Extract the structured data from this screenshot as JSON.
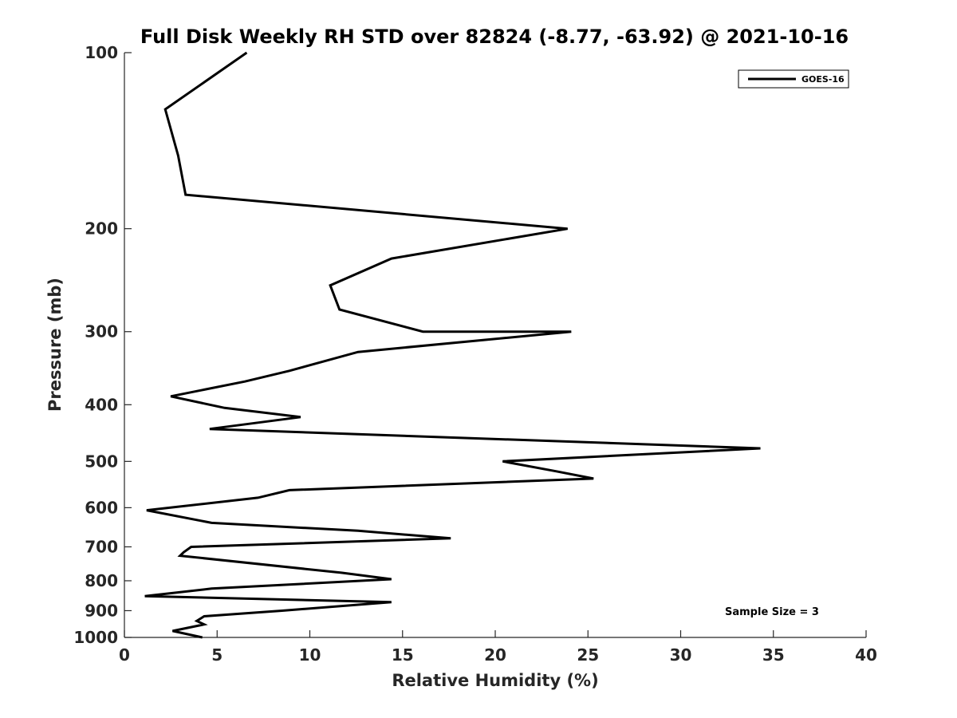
{
  "chart_data": {
    "type": "line",
    "title": "Full Disk Weekly RH STD over 82824 (-8.77, -63.92) @ 2021-10-16",
    "xlabel": "Relative Humidity (%)",
    "ylabel": "Pressure (mb)",
    "xlim": [
      0,
      40
    ],
    "ylim": [
      1000,
      100
    ],
    "y_scale": "log",
    "x_ticks": [
      0,
      5,
      10,
      15,
      20,
      25,
      30,
      35,
      40
    ],
    "x_tick_labels": [
      "0",
      "5",
      "10",
      "15",
      "20",
      "25",
      "30",
      "35",
      "40"
    ],
    "y_ticks": [
      100,
      200,
      300,
      400,
      500,
      600,
      700,
      800,
      900,
      1000
    ],
    "y_tick_labels": [
      "100",
      "200",
      "300",
      "400",
      "500",
      "600",
      "700",
      "800",
      "900",
      "1000"
    ],
    "grid": false,
    "legend_position": "top-right",
    "series": [
      {
        "name": "GOES-16",
        "color": "#000000",
        "points": [
          [
            6.6,
            100
          ],
          [
            2.2,
            125
          ],
          [
            2.9,
            150
          ],
          [
            3.3,
            175
          ],
          [
            23.9,
            200
          ],
          [
            14.4,
            225
          ],
          [
            11.1,
            250
          ],
          [
            11.6,
            275
          ],
          [
            16.1,
            300
          ],
          [
            24.1,
            300
          ],
          [
            12.6,
            325
          ],
          [
            8.9,
            350
          ],
          [
            6.5,
            365
          ],
          [
            2.5,
            387
          ],
          [
            5.4,
            405
          ],
          [
            9.5,
            420
          ],
          [
            4.6,
            440
          ],
          [
            34.3,
            475
          ],
          [
            20.4,
            500
          ],
          [
            23.3,
            520
          ],
          [
            25.3,
            535
          ],
          [
            8.9,
            560
          ],
          [
            7.2,
            577
          ],
          [
            1.2,
            606
          ],
          [
            4.7,
            637
          ],
          [
            12.6,
            657
          ],
          [
            17.6,
            677
          ],
          [
            3.6,
            700
          ],
          [
            3.2,
            715
          ],
          [
            3.0,
            725
          ],
          [
            11.7,
            775
          ],
          [
            14.4,
            795
          ],
          [
            4.7,
            825
          ],
          [
            1.1,
            850
          ],
          [
            14.4,
            870
          ],
          [
            8.5,
            900
          ],
          [
            4.3,
            920
          ],
          [
            3.9,
            937
          ],
          [
            4.3,
            950
          ],
          [
            2.6,
            975
          ],
          [
            4.2,
            1000
          ]
        ]
      }
    ],
    "annotation": "Sample Size = 3"
  }
}
